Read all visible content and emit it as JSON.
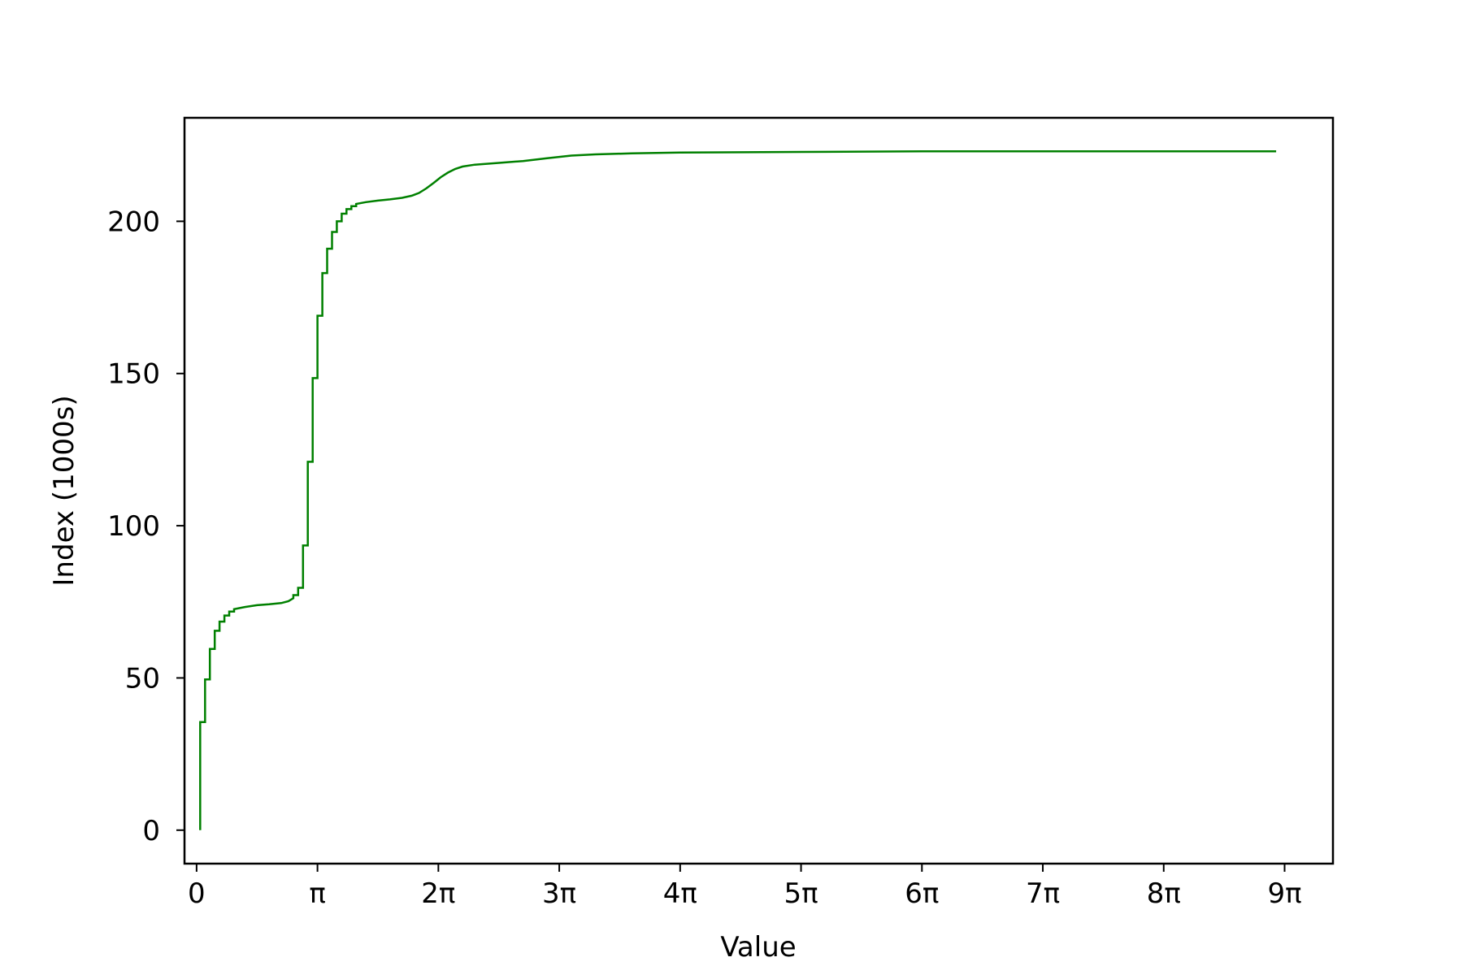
{
  "chart_data": {
    "type": "line",
    "title": "",
    "xlabel": "Value",
    "ylabel": "Index (1000s)",
    "xlim": [
      -0.1,
      9.4
    ],
    "ylim": [
      -11,
      234
    ],
    "x_unit": "π",
    "grid": false,
    "legend": "none",
    "x_ticks": [
      {
        "value": 0,
        "label": "0"
      },
      {
        "value": 1,
        "label": "π"
      },
      {
        "value": 2,
        "label": "2π"
      },
      {
        "value": 3,
        "label": "3π"
      },
      {
        "value": 4,
        "label": "4π"
      },
      {
        "value": 5,
        "label": "5π"
      },
      {
        "value": 6,
        "label": "6π"
      },
      {
        "value": 7,
        "label": "7π"
      },
      {
        "value": 8,
        "label": "8π"
      },
      {
        "value": 9,
        "label": "9π"
      }
    ],
    "y_ticks": [
      {
        "value": 0,
        "label": "0"
      },
      {
        "value": 50,
        "label": "50"
      },
      {
        "value": 100,
        "label": "100"
      },
      {
        "value": 150,
        "label": "150"
      },
      {
        "value": 200,
        "label": "200"
      }
    ],
    "series": [
      {
        "color": "#008000",
        "step": true,
        "points": [
          [
            0.03,
            0
          ],
          [
            0.03,
            35.5
          ],
          [
            0.07,
            35.5
          ],
          [
            0.07,
            49.5
          ],
          [
            0.11,
            49.5
          ],
          [
            0.11,
            59.5
          ],
          [
            0.15,
            59.5
          ],
          [
            0.15,
            65.5
          ],
          [
            0.19,
            65.5
          ],
          [
            0.19,
            68.5
          ],
          [
            0.23,
            68.5
          ],
          [
            0.23,
            70.5
          ],
          [
            0.27,
            70.5
          ],
          [
            0.27,
            71.8
          ],
          [
            0.31,
            71.8
          ],
          [
            0.31,
            72.6
          ],
          [
            0.4,
            73.3
          ],
          [
            0.5,
            73.9
          ],
          [
            0.6,
            74.2
          ],
          [
            0.7,
            74.6
          ],
          [
            0.76,
            75.2
          ],
          [
            0.8,
            76.2
          ],
          [
            0.8,
            77.2
          ],
          [
            0.84,
            77.2
          ],
          [
            0.84,
            79.6
          ],
          [
            0.88,
            79.6
          ],
          [
            0.88,
            93.5
          ],
          [
            0.92,
            93.5
          ],
          [
            0.92,
            121
          ],
          [
            0.96,
            121
          ],
          [
            0.96,
            148.5
          ],
          [
            1.0,
            148.5
          ],
          [
            1.0,
            169
          ],
          [
            1.04,
            169
          ],
          [
            1.04,
            183
          ],
          [
            1.08,
            183
          ],
          [
            1.08,
            191
          ],
          [
            1.12,
            191
          ],
          [
            1.12,
            196.5
          ],
          [
            1.16,
            196.5
          ],
          [
            1.16,
            200
          ],
          [
            1.2,
            200
          ],
          [
            1.2,
            202.5
          ],
          [
            1.24,
            202.5
          ],
          [
            1.24,
            204
          ],
          [
            1.28,
            204
          ],
          [
            1.28,
            205
          ],
          [
            1.32,
            205
          ],
          [
            1.32,
            205.7
          ],
          [
            1.4,
            206.3
          ],
          [
            1.5,
            206.8
          ],
          [
            1.6,
            207.2
          ],
          [
            1.7,
            207.7
          ],
          [
            1.78,
            208.4
          ],
          [
            1.84,
            209.3
          ],
          [
            1.9,
            210.8
          ],
          [
            1.96,
            212.6
          ],
          [
            2.02,
            214.5
          ],
          [
            2.08,
            216.0
          ],
          [
            2.14,
            217.2
          ],
          [
            2.2,
            218.0
          ],
          [
            2.3,
            218.6
          ],
          [
            2.5,
            219.2
          ],
          [
            2.7,
            219.8
          ],
          [
            2.9,
            220.7
          ],
          [
            3.1,
            221.6
          ],
          [
            3.3,
            222.0
          ],
          [
            3.6,
            222.3
          ],
          [
            4.0,
            222.6
          ],
          [
            5.0,
            222.8
          ],
          [
            6.0,
            223.0
          ],
          [
            7.0,
            223.0
          ],
          [
            8.0,
            223.0
          ],
          [
            8.93,
            223.0
          ]
        ]
      }
    ]
  }
}
